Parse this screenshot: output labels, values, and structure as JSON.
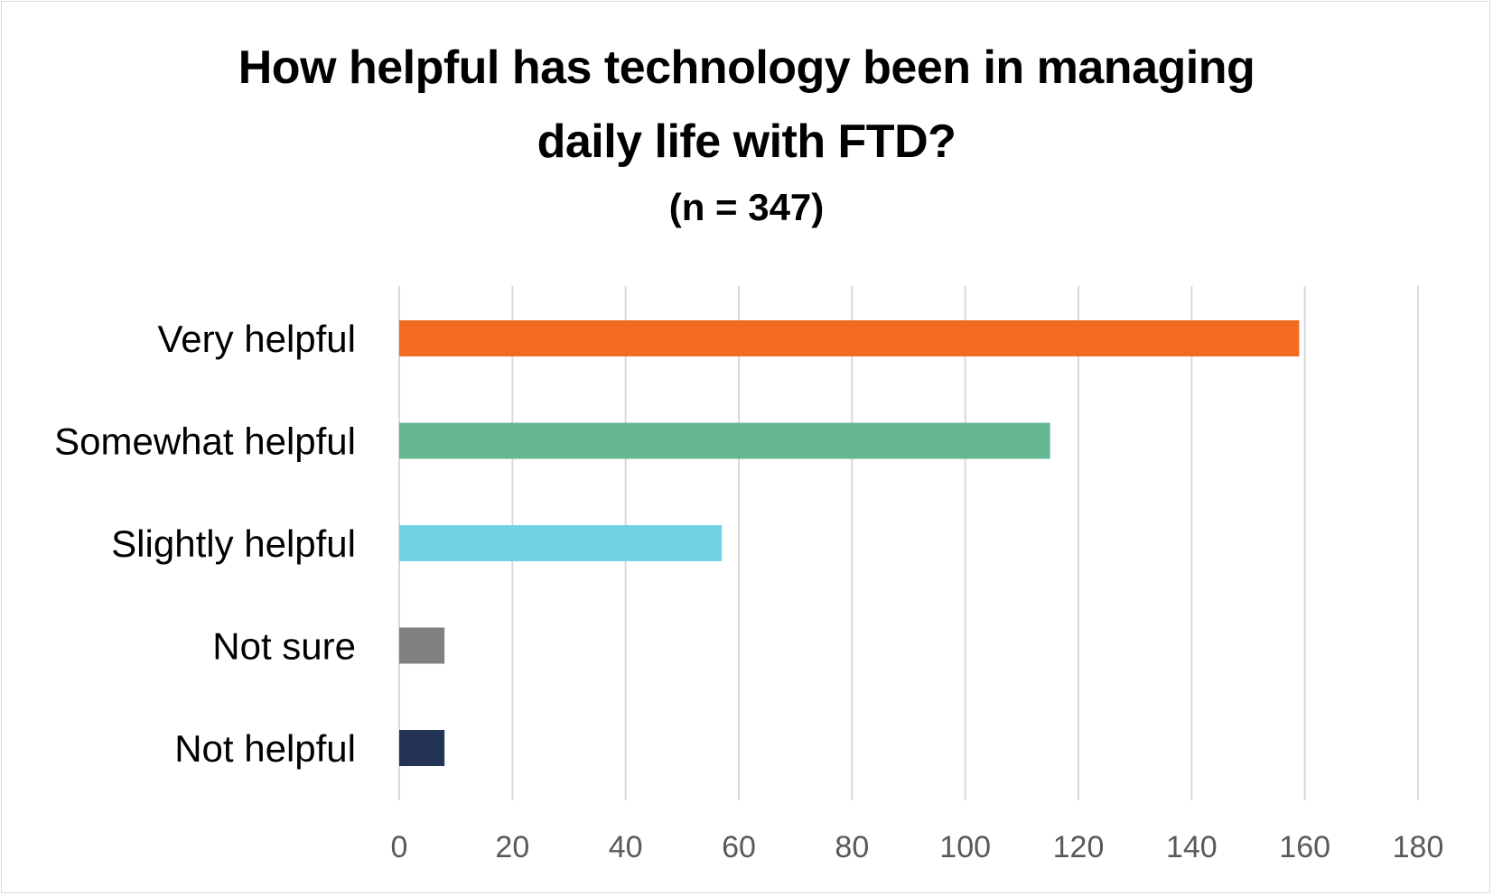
{
  "chart_data": {
    "type": "bar",
    "orientation": "horizontal",
    "title_lines": [
      "How helpful has technology been in managing",
      "daily life with FTD?"
    ],
    "subtitle": "(n = 347)",
    "categories": [
      "Very helpful",
      "Somewhat helpful",
      "Slightly helpful",
      "Not sure",
      "Not helpful"
    ],
    "values": [
      159,
      115,
      57,
      8,
      8
    ],
    "colors": [
      "#f26b21",
      "#66b794",
      "#72d2e4",
      "#808080",
      "#223354"
    ],
    "xlim": [
      0,
      180
    ],
    "xticks": [
      0,
      20,
      40,
      60,
      80,
      100,
      120,
      140,
      160,
      180
    ],
    "grid": true,
    "legend": "none"
  }
}
